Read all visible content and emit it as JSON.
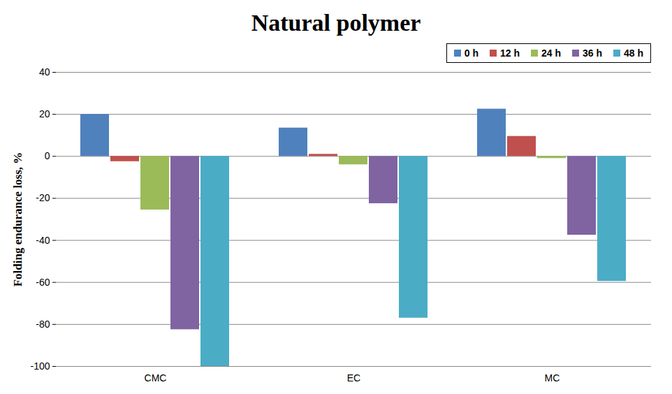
{
  "chart_data": {
    "type": "bar",
    "title": "Natural polymer",
    "y_label": "Folding endurance loss, %",
    "categories": [
      "CMC",
      "EC",
      "MC"
    ],
    "series": [
      {
        "name": "0 h",
        "color": "#4f81bd",
        "values": [
          20,
          13.5,
          22.5
        ]
      },
      {
        "name": "12 h",
        "color": "#c0504d",
        "values": [
          -2.5,
          1,
          9.5
        ]
      },
      {
        "name": "24 h",
        "color": "#9bbb59",
        "values": [
          -25.5,
          -4,
          -1
        ]
      },
      {
        "name": "36 h",
        "color": "#8064a2",
        "values": [
          -82.5,
          -22.5,
          -37.5
        ]
      },
      {
        "name": "48 h",
        "color": "#4bacc6",
        "values": [
          -100,
          -77,
          -59.5
        ]
      }
    ],
    "ylim": [
      -100,
      40
    ],
    "yticks": [
      -100,
      -80,
      -60,
      -40,
      -20,
      0,
      20,
      40
    ],
    "grid": true,
    "legend": "top-right"
  }
}
